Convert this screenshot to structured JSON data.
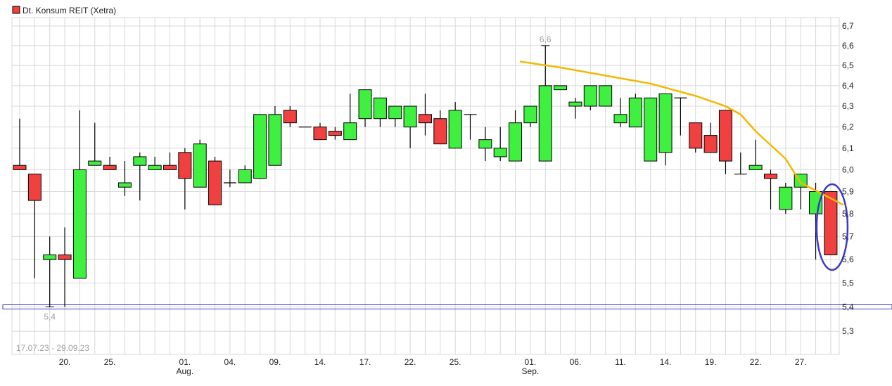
{
  "legend": {
    "label": "Dt. Konsum REIT (Xetra)",
    "color": "#f04040"
  },
  "chart_data": {
    "type": "candlestick",
    "title": "",
    "date_range": "17.07.23 - 29.09.23",
    "y_scale": "log",
    "ylim": [
      5.3,
      6.7
    ],
    "y_ticks": [
      "6,7",
      "6,6",
      "6,5",
      "6,4",
      "6,3",
      "6,2",
      "6,1",
      "6,0",
      "5,9",
      "5,8",
      "5,7",
      "5,6",
      "5,5",
      "5,4",
      "5,3"
    ],
    "y_tick_values": [
      6.7,
      6.6,
      6.5,
      6.4,
      6.3,
      6.2,
      6.1,
      6.0,
      5.9,
      5.8,
      5.7,
      5.6,
      5.5,
      5.4,
      5.3
    ],
    "grid": true,
    "x_ticks": [
      {
        "date": "20.07.",
        "label": "20.",
        "sub": ""
      },
      {
        "date": "25.07.",
        "label": "25.",
        "sub": ""
      },
      {
        "date": "01.08.",
        "label": "01.",
        "sub": "Aug."
      },
      {
        "date": "04.08.",
        "label": "04.",
        "sub": ""
      },
      {
        "date": "09.08.",
        "label": "09.",
        "sub": ""
      },
      {
        "date": "14.08.",
        "label": "14.",
        "sub": ""
      },
      {
        "date": "17.08.",
        "label": "17.",
        "sub": ""
      },
      {
        "date": "22.08.",
        "label": "22.",
        "sub": ""
      },
      {
        "date": "25.08.",
        "label": "25.",
        "sub": ""
      },
      {
        "date": "01.09.",
        "label": "01.",
        "sub": "Sep."
      },
      {
        "date": "06.09.",
        "label": "06.",
        "sub": ""
      },
      {
        "date": "11.09.",
        "label": "11.",
        "sub": ""
      },
      {
        "date": "14.09.",
        "label": "14.",
        "sub": ""
      },
      {
        "date": "19.09.",
        "label": "19.",
        "sub": ""
      },
      {
        "date": "22.09.",
        "label": "22.",
        "sub": ""
      },
      {
        "date": "27.09.",
        "label": "27.",
        "sub": ""
      }
    ],
    "candles_columns": [
      "date",
      "open",
      "high",
      "low",
      "close"
    ],
    "candles": [
      [
        "17.07.",
        6.02,
        6.24,
        6.0,
        6.0
      ],
      [
        "18.07.",
        5.98,
        5.98,
        5.52,
        5.86
      ],
      [
        "19.07.",
        5.6,
        5.7,
        5.4,
        5.62
      ],
      [
        "20.07.",
        5.62,
        5.74,
        5.4,
        5.6
      ],
      [
        "21.07.",
        5.52,
        6.28,
        5.52,
        6.0
      ],
      [
        "24.07.",
        6.02,
        6.22,
        6.02,
        6.04
      ],
      [
        "25.07.",
        6.02,
        6.06,
        6.0,
        6.0
      ],
      [
        "26.07.",
        5.92,
        6.04,
        5.88,
        5.94
      ],
      [
        "27.07.",
        6.02,
        6.08,
        5.86,
        6.06
      ],
      [
        "28.07.",
        6.0,
        6.06,
        6.0,
        6.02
      ],
      [
        "31.07.",
        6.02,
        6.08,
        6.0,
        6.0
      ],
      [
        "01.08.",
        6.08,
        6.1,
        5.82,
        5.96
      ],
      [
        "02.08.",
        5.92,
        6.14,
        5.92,
        6.12
      ],
      [
        "03.08.",
        6.04,
        6.06,
        5.84,
        5.84
      ],
      [
        "04.08.",
        5.94,
        6.0,
        5.92,
        5.94
      ],
      [
        "07.08.",
        5.94,
        6.02,
        5.94,
        6.0
      ],
      [
        "08.08.",
        5.96,
        6.26,
        5.96,
        6.26
      ],
      [
        "09.08.",
        6.02,
        6.3,
        6.02,
        6.26
      ],
      [
        "10.08.",
        6.28,
        6.3,
        6.2,
        6.22
      ],
      [
        "11.08.",
        6.2,
        6.2,
        6.2,
        6.2
      ],
      [
        "14.08.",
        6.2,
        6.22,
        6.14,
        6.14
      ],
      [
        "15.08.",
        6.18,
        6.2,
        6.14,
        6.16
      ],
      [
        "16.08.",
        6.14,
        6.36,
        6.14,
        6.22
      ],
      [
        "17.08.",
        6.24,
        6.38,
        6.2,
        6.38
      ],
      [
        "18.08.",
        6.24,
        6.34,
        6.2,
        6.34
      ],
      [
        "21.08.",
        6.24,
        6.3,
        6.2,
        6.3
      ],
      [
        "22.08.",
        6.2,
        6.3,
        6.1,
        6.3
      ],
      [
        "23.08.",
        6.26,
        6.36,
        6.16,
        6.22
      ],
      [
        "24.08.",
        6.24,
        6.28,
        6.12,
        6.12
      ],
      [
        "25.08.",
        6.1,
        6.32,
        6.1,
        6.28
      ],
      [
        "28.08.",
        6.26,
        6.26,
        6.14,
        6.26
      ],
      [
        "29.08.",
        6.1,
        6.2,
        6.04,
        6.14
      ],
      [
        "30.08.",
        6.06,
        6.2,
        6.04,
        6.1
      ],
      [
        "31.08.",
        6.04,
        6.28,
        6.04,
        6.22
      ],
      [
        "01.09.",
        6.22,
        6.3,
        6.2,
        6.3
      ],
      [
        "04.09.",
        6.04,
        6.6,
        6.04,
        6.4
      ],
      [
        "05.09.",
        6.38,
        6.4,
        6.38,
        6.4
      ],
      [
        "06.09.",
        6.3,
        6.34,
        6.24,
        6.32
      ],
      [
        "07.09.",
        6.3,
        6.4,
        6.28,
        6.4
      ],
      [
        "08.09.",
        6.3,
        6.4,
        6.3,
        6.4
      ],
      [
        "11.09.",
        6.22,
        6.34,
        6.2,
        6.26
      ],
      [
        "12.09.",
        6.2,
        6.36,
        6.2,
        6.34
      ],
      [
        "13.09.",
        6.04,
        6.34,
        6.04,
        6.34
      ],
      [
        "14.09.",
        6.08,
        6.36,
        6.02,
        6.36
      ],
      [
        "15.09.",
        6.34,
        6.34,
        6.16,
        6.34
      ],
      [
        "18.09.",
        6.22,
        6.22,
        6.08,
        6.1
      ],
      [
        "19.09.",
        6.16,
        6.22,
        6.08,
        6.08
      ],
      [
        "20.09.",
        6.28,
        6.28,
        5.98,
        6.04
      ],
      [
        "21.09.",
        5.98,
        6.08,
        5.98,
        5.98
      ],
      [
        "22.09.",
        6.0,
        6.14,
        6.0,
        6.02
      ],
      [
        "25.09.",
        5.98,
        6.0,
        5.82,
        5.96
      ],
      [
        "26.09.",
        5.82,
        5.94,
        5.8,
        5.92
      ],
      [
        "27.09.",
        5.92,
        5.98,
        5.82,
        5.98
      ],
      [
        "28.09.",
        5.8,
        5.94,
        5.6,
        5.9
      ],
      [
        "29.09.",
        5.9,
        5.9,
        5.62,
        5.62
      ]
    ],
    "annotations": {
      "high_label": {
        "date": "04.09.",
        "value": 6.6,
        "text": "6,6"
      },
      "low_label": {
        "date": "19.07.",
        "value": 5.4,
        "text": "5,4"
      },
      "support_band": {
        "value": 5.4,
        "color": "#3a3ac8"
      },
      "highlight_ellipse": {
        "date": "29.09.",
        "color": "#3a3ac8"
      },
      "trend_line": {
        "color": "#f5b800",
        "points": [
          [
            "01.09.",
            6.52
          ],
          [
            "05.09.",
            6.49
          ],
          [
            "13.09.",
            6.41
          ],
          [
            "18.09.",
            6.35
          ],
          [
            "20.09.",
            6.3
          ],
          [
            "21.09.",
            6.26
          ],
          [
            "22.09.",
            6.18
          ],
          [
            "26.09.",
            6.05
          ],
          [
            "27.09.",
            5.94
          ],
          [
            "29.09.",
            5.84
          ]
        ]
      }
    },
    "colors": {
      "up": "#40f040",
      "down": "#f04040",
      "grid": "#d8d8d8"
    }
  }
}
